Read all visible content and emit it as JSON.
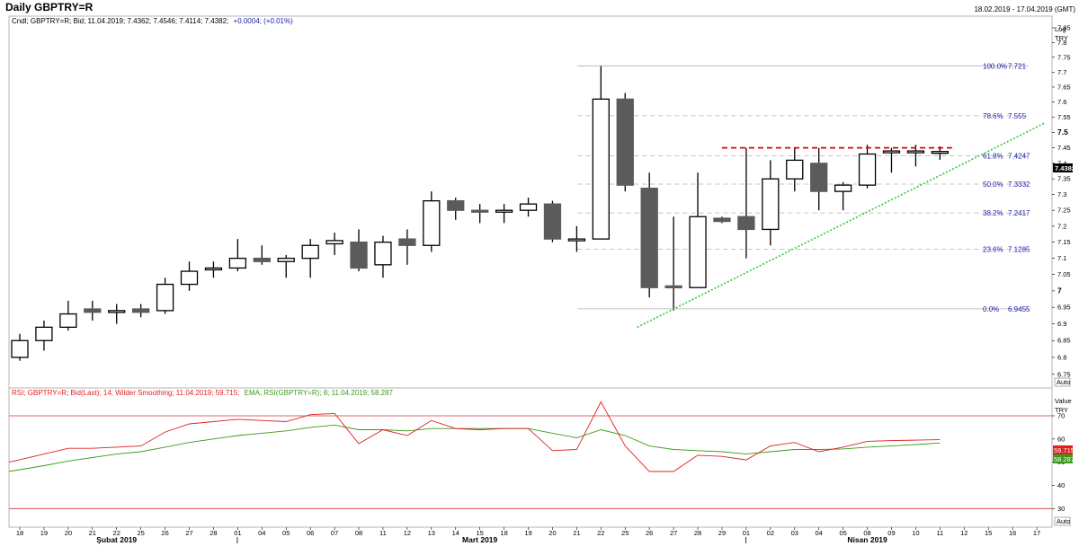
{
  "header": {
    "title": "Daily GBPTRY=R",
    "date_range": "18.02.2019 - 17.04.2019 (GMT)",
    "legend_prefix": "Cndl; GBPTRY=R; Bid; 11.04.2019; 7.4362; 7.4546; 7.4114; 7.4382;",
    "legend_change": "+0.0004; (+0.01%)",
    "legend_change_color": "#1a1aa6"
  },
  "price_panel": {
    "axis_caption": [
      "Log",
      "TRY"
    ],
    "last_price_label": "7.4382",
    "auto_label": "Auto",
    "ylim": [
      6.71,
      7.89
    ],
    "tick_labels": [
      "7.85",
      "7.8",
      "7.75",
      "7.7",
      "7.65",
      "7.6",
      "7.55",
      "7.5",
      "7.45",
      "7.4",
      "7.35",
      "7.3",
      "7.25",
      "7.2",
      "7.15",
      "7.1",
      "7.05",
      "7",
      "6.95",
      "6.9",
      "6.85",
      "6.8",
      "6.75"
    ],
    "tick_values": [
      7.85,
      7.8,
      7.75,
      7.7,
      7.65,
      7.6,
      7.55,
      7.5,
      7.45,
      7.4,
      7.35,
      7.3,
      7.25,
      7.2,
      7.15,
      7.1,
      7.05,
      7.0,
      6.95,
      6.9,
      6.85,
      6.8,
      6.75
    ]
  },
  "rsi_panel": {
    "legend_rsi": "RSI; GBPTRY=R; Bid(Last); 14; Wilder Smoothing; 11.04.2019; 59.715;",
    "legend_ema": "EMA; RSI(GBPTRY=R); 8; 11.04.2019; 58.287",
    "rsi_color": "#e02020",
    "ema_color": "#3a9a1a",
    "axis_caption": [
      "Value",
      "TRY"
    ],
    "rsi_last_label": "59.715",
    "ema_last_label": "58.287",
    "auto_label": "Auto",
    "ylim": [
      22,
      82
    ],
    "tick_labels": [
      "70",
      "60",
      "50",
      "40",
      "30"
    ],
    "tick_values": [
      70,
      60,
      50,
      40,
      30
    ],
    "overbought": 70,
    "oversold": 30
  },
  "x_axis": {
    "day_labels": [
      "18",
      "19",
      "20",
      "21",
      "22",
      "25",
      "26",
      "27",
      "28",
      "01",
      "04",
      "05",
      "06",
      "07",
      "08",
      "11",
      "12",
      "13",
      "14",
      "15",
      "18",
      "19",
      "20",
      "21",
      "22",
      "25",
      "26",
      "27",
      "28",
      "29",
      "01",
      "02",
      "03",
      "04",
      "05",
      "08",
      "09",
      "10",
      "11",
      "12",
      "15",
      "16",
      "17"
    ],
    "month_labels": [
      {
        "text": "Şubat 2019",
        "index": 4
      },
      {
        "text": "Mart 2019",
        "index": 19
      },
      {
        "text": "Nisan 2019",
        "index": 35
      }
    ],
    "month_separators": [
      9,
      30
    ]
  },
  "chart_data": {
    "type": "candlestick",
    "title": "Daily GBPTRY=R",
    "ylabel": "TRY",
    "y_scale": "log",
    "candles": [
      {
        "date": "18.02",
        "o": 6.8,
        "h": 6.87,
        "l": 6.79,
        "c": 6.85
      },
      {
        "date": "19.02",
        "o": 6.85,
        "h": 6.91,
        "l": 6.82,
        "c": 6.89
      },
      {
        "date": "20.02",
        "o": 6.89,
        "h": 6.97,
        "l": 6.88,
        "c": 6.93
      },
      {
        "date": "21.02",
        "o": 6.945,
        "h": 6.97,
        "l": 6.91,
        "c": 6.935
      },
      {
        "date": "22.02",
        "o": 6.94,
        "h": 6.96,
        "l": 6.9,
        "c": 6.94
      },
      {
        "date": "25.02",
        "o": 6.945,
        "h": 6.96,
        "l": 6.92,
        "c": 6.935
      },
      {
        "date": "26.02",
        "o": 6.94,
        "h": 7.04,
        "l": 6.93,
        "c": 7.02
      },
      {
        "date": "27.02",
        "o": 7.02,
        "h": 7.09,
        "l": 7.0,
        "c": 7.06
      },
      {
        "date": "28.02",
        "o": 7.07,
        "h": 7.09,
        "l": 7.04,
        "c": 7.07
      },
      {
        "date": "01.03",
        "o": 7.07,
        "h": 7.16,
        "l": 7.06,
        "c": 7.1
      },
      {
        "date": "04.03",
        "o": 7.1,
        "h": 7.14,
        "l": 7.08,
        "c": 7.09
      },
      {
        "date": "05.03",
        "o": 7.09,
        "h": 7.11,
        "l": 7.04,
        "c": 7.1
      },
      {
        "date": "06.03",
        "o": 7.1,
        "h": 7.16,
        "l": 7.04,
        "c": 7.14
      },
      {
        "date": "07.03",
        "o": 7.145,
        "h": 7.18,
        "l": 7.11,
        "c": 7.155
      },
      {
        "date": "08.03",
        "o": 7.15,
        "h": 7.19,
        "l": 7.06,
        "c": 7.07
      },
      {
        "date": "11.03",
        "o": 7.08,
        "h": 7.17,
        "l": 7.04,
        "c": 7.15
      },
      {
        "date": "12.03",
        "o": 7.16,
        "h": 7.19,
        "l": 7.08,
        "c": 7.14
      },
      {
        "date": "13.03",
        "o": 7.14,
        "h": 7.31,
        "l": 7.12,
        "c": 7.28
      },
      {
        "date": "14.03",
        "o": 7.28,
        "h": 7.29,
        "l": 7.22,
        "c": 7.25
      },
      {
        "date": "15.03",
        "o": 7.25,
        "h": 7.27,
        "l": 7.21,
        "c": 7.245
      },
      {
        "date": "18.03",
        "o": 7.245,
        "h": 7.27,
        "l": 7.21,
        "c": 7.25
      },
      {
        "date": "19.03",
        "o": 7.25,
        "h": 7.29,
        "l": 7.23,
        "c": 7.27
      },
      {
        "date": "20.03",
        "o": 7.27,
        "h": 7.28,
        "l": 7.15,
        "c": 7.16
      },
      {
        "date": "21.03",
        "o": 7.16,
        "h": 7.2,
        "l": 7.12,
        "c": 7.16
      },
      {
        "date": "22.03",
        "o": 7.16,
        "h": 7.72,
        "l": 7.16,
        "c": 7.61
      },
      {
        "date": "25.03",
        "o": 7.61,
        "h": 7.63,
        "l": 7.31,
        "c": 7.33
      },
      {
        "date": "26.03",
        "o": 7.32,
        "h": 7.37,
        "l": 6.98,
        "c": 7.01
      },
      {
        "date": "27.03",
        "o": 7.015,
        "h": 7.23,
        "l": 6.94,
        "c": 7.01
      },
      {
        "date": "28.03",
        "o": 7.01,
        "h": 7.37,
        "l": 7.01,
        "c": 7.23
      },
      {
        "date": "29.03",
        "o": 7.225,
        "h": 7.23,
        "l": 7.21,
        "c": 7.215
      },
      {
        "date": "01.04",
        "o": 7.23,
        "h": 7.45,
        "l": 7.1,
        "c": 7.19
      },
      {
        "date": "02.04",
        "o": 7.19,
        "h": 7.41,
        "l": 7.14,
        "c": 7.35
      },
      {
        "date": "03.04",
        "o": 7.35,
        "h": 7.45,
        "l": 7.31,
        "c": 7.41
      },
      {
        "date": "04.04",
        "o": 7.4,
        "h": 7.45,
        "l": 7.25,
        "c": 7.31
      },
      {
        "date": "05.04",
        "o": 7.31,
        "h": 7.34,
        "l": 7.25,
        "c": 7.33
      },
      {
        "date": "08.04",
        "o": 7.33,
        "h": 7.46,
        "l": 7.32,
        "c": 7.43
      },
      {
        "date": "09.04",
        "o": 7.435,
        "h": 7.45,
        "l": 7.37,
        "c": 7.44
      },
      {
        "date": "10.04",
        "o": 7.44,
        "h": 7.46,
        "l": 7.39,
        "c": 7.44
      },
      {
        "date": "11.04",
        "o": 7.4362,
        "h": 7.4546,
        "l": 7.4114,
        "c": 7.4382
      }
    ],
    "fibonacci": [
      {
        "label": "100.0%",
        "value": 7.721
      },
      {
        "label": "78.6%",
        "value": 7.555
      },
      {
        "label": "61.8%",
        "value": 7.4247
      },
      {
        "label": "50.0%",
        "value": 7.3332
      },
      {
        "label": "38.2%",
        "value": 7.2417
      },
      {
        "label": "23.6%",
        "value": 7.1285
      },
      {
        "label": "0.0%",
        "value": 6.9455
      }
    ],
    "fibonacci_text": [
      {
        "pct": "100.0%",
        "val": "7.721"
      },
      {
        "pct": "78.6%",
        "val": "7.555"
      },
      {
        "pct": "61.8%",
        "val": "7.4247"
      },
      {
        "pct": "50.0%",
        "val": "7.3332"
      },
      {
        "pct": "38.2%",
        "val": "7.2417"
      },
      {
        "pct": "23.6%",
        "val": "7.1285"
      },
      {
        "pct": "0.0%",
        "val": "6.9455"
      }
    ],
    "fib_start_index": 23,
    "trendline": {
      "from": {
        "i": 25.5,
        "v": 6.89
      },
      "to": {
        "i": 42,
        "v": 7.53
      },
      "color": "#2ecc2e",
      "style": "dotted"
    },
    "resistance": {
      "from_i": 29,
      "to_i": 38.5,
      "value": 7.45,
      "color": "#e00000",
      "style": "dashed"
    },
    "rsi": [
      50,
      53.5,
      56,
      56,
      56.5,
      57,
      63,
      66.5,
      67.5,
      68.5,
      68,
      67.5,
      70.5,
      71,
      58,
      64,
      61.5,
      68,
      64.5,
      64,
      64.5,
      64.5,
      55,
      55.5,
      76,
      57,
      46,
      46,
      53,
      52.5,
      51,
      57,
      58.5,
      54.5,
      56.5,
      59,
      59.3,
      59.5,
      59.715
    ],
    "rsi_ema": [
      46,
      48.5,
      50.5,
      52,
      53.5,
      54.5,
      56.5,
      58.5,
      60,
      61.5,
      62.5,
      63.5,
      65,
      66,
      64,
      64,
      63.5,
      64.5,
      64.5,
      64.5,
      64.5,
      64.5,
      62.5,
      60.5,
      64,
      61.5,
      57,
      55.5,
      55,
      54.5,
      53.5,
      54.5,
      55.5,
      55.5,
      55.7,
      56.5,
      57,
      57.6,
      58.287
    ]
  }
}
